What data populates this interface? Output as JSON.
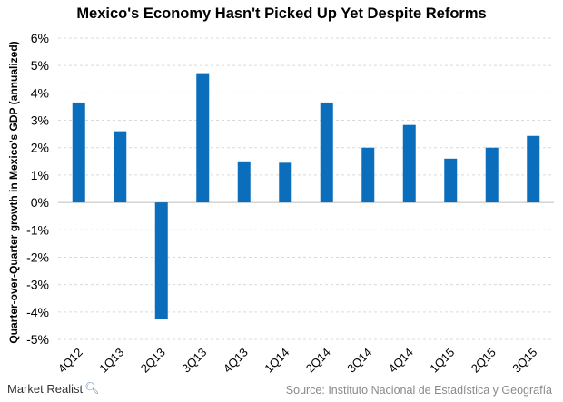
{
  "chart_data": {
    "type": "bar",
    "title": "Mexico's Economy Hasn't Picked Up Yet Despite Reforms",
    "ylabel": "Quarter-over-Quarter growth in Mexico's GDP (annualized)",
    "xlabel": "",
    "categories": [
      "4Q12",
      "1Q13",
      "2Q13",
      "3Q13",
      "4Q13",
      "1Q14",
      "2Q14",
      "3Q14",
      "4Q14",
      "1Q15",
      "2Q15",
      "3Q15"
    ],
    "values": [
      3.65,
      2.6,
      -4.25,
      4.72,
      1.5,
      1.45,
      3.65,
      2.0,
      2.83,
      1.6,
      2.0,
      2.43
    ],
    "ylim": [
      -5,
      6
    ],
    "yticks": [
      6,
      5,
      4,
      3,
      2,
      1,
      0,
      -1,
      -2,
      -3,
      -4,
      -5
    ],
    "ytick_labels": [
      "6%",
      "5%",
      "4%",
      "3%",
      "2%",
      "1%",
      "0%",
      "-1%",
      "-2%",
      "-3%",
      "-4%",
      "-5%"
    ],
    "grid": true,
    "bar_color": "#0a6ebd"
  },
  "footer": {
    "brand": "Market Realist",
    "brand_icon": "magnifier-icon",
    "source": "Source: Instituto Nacional de Estadística y Geografía"
  }
}
